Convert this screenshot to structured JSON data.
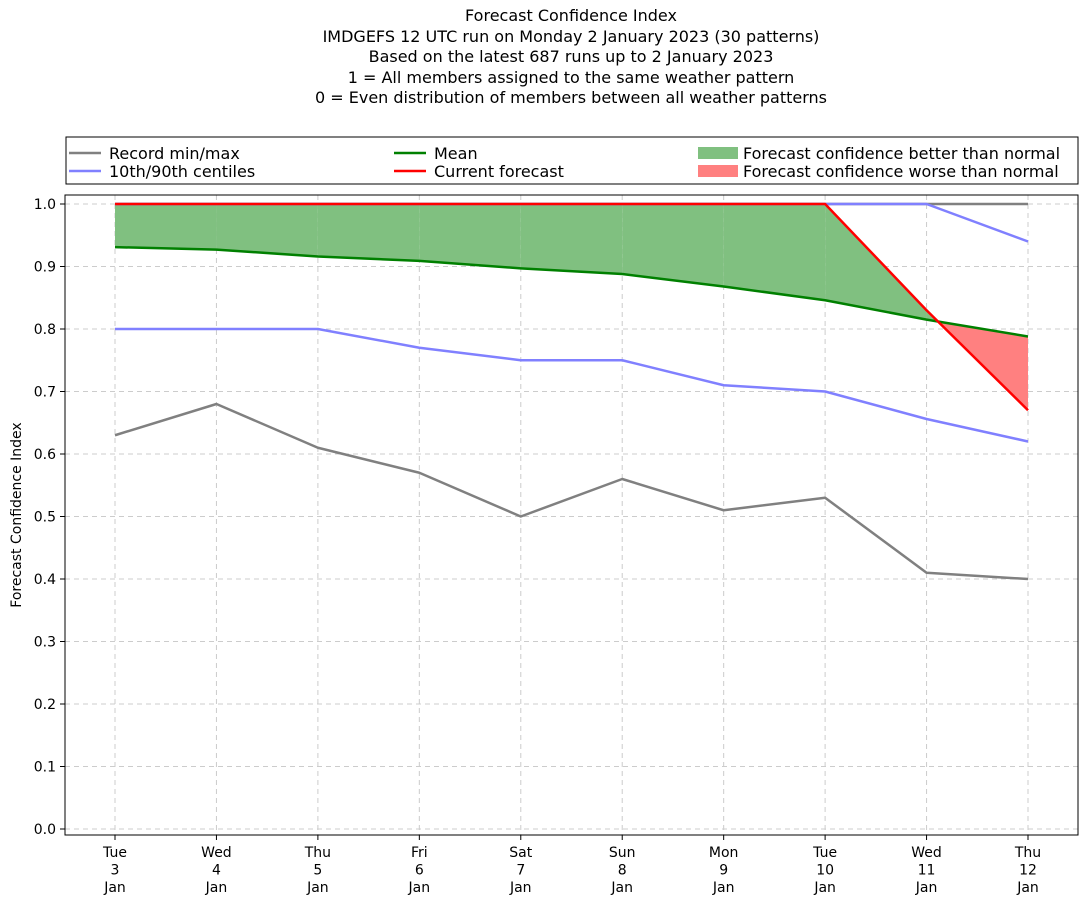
{
  "chart_data": {
    "type": "line",
    "title_lines": [
      "Forecast Confidence Index",
      "IMDGEFS 12 UTC run on Monday 2 January 2023 (30 patterns)",
      "Based on the latest 687 runs up to 2 January 2023",
      "1 = All members assigned to the same weather pattern",
      "0 = Even distribution of members between all weather patterns"
    ],
    "ylabel": "Forecast Confidence Index",
    "xlabel": "",
    "ylim": [
      0.0,
      1.0
    ],
    "yticks": [
      "0.0",
      "0.1",
      "0.2",
      "0.3",
      "0.4",
      "0.5",
      "0.6",
      "0.7",
      "0.8",
      "0.9",
      "1.0"
    ],
    "categories": [
      [
        "Tue",
        "3",
        "Jan"
      ],
      [
        "Wed",
        "4",
        "Jan"
      ],
      [
        "Thu",
        "5",
        "Jan"
      ],
      [
        "Fri",
        "6",
        "Jan"
      ],
      [
        "Sat",
        "7",
        "Jan"
      ],
      [
        "Sun",
        "8",
        "Jan"
      ],
      [
        "Mon",
        "9",
        "Jan"
      ],
      [
        "Tue",
        "10",
        "Jan"
      ],
      [
        "Wed",
        "11",
        "Jan"
      ],
      [
        "Thu",
        "12",
        "Jan"
      ]
    ],
    "grid": true,
    "legend_position": "top",
    "series": [
      {
        "key": "record_min",
        "name": "Record min/max",
        "color": "#808080",
        "values": [
          0.63,
          0.68,
          0.61,
          0.57,
          0.5,
          0.56,
          0.51,
          0.53,
          0.41,
          0.4
        ]
      },
      {
        "key": "record_max",
        "name": "Record min/max",
        "color": "#808080",
        "values": [
          1.0,
          1.0,
          1.0,
          1.0,
          1.0,
          1.0,
          1.0,
          1.0,
          1.0,
          1.0
        ]
      },
      {
        "key": "p10",
        "name": "10th/90th centiles",
        "color": "#8080ff",
        "values": [
          0.8,
          0.8,
          0.8,
          0.77,
          0.75,
          0.75,
          0.71,
          0.7,
          0.656,
          0.62
        ]
      },
      {
        "key": "p90",
        "name": "10th/90th centiles",
        "color": "#8080ff",
        "values": [
          1.0,
          1.0,
          1.0,
          1.0,
          1.0,
          1.0,
          1.0,
          1.0,
          1.0,
          0.94
        ]
      },
      {
        "key": "mean",
        "name": "Mean",
        "color": "#008000",
        "values": [
          0.931,
          0.927,
          0.916,
          0.909,
          0.897,
          0.888,
          0.868,
          0.846,
          0.815,
          0.788
        ]
      },
      {
        "key": "current",
        "name": "Current forecast",
        "color": "#ff0000",
        "values": [
          1.0,
          1.0,
          1.0,
          1.0,
          1.0,
          1.0,
          1.0,
          1.0,
          0.83,
          0.67
        ]
      }
    ],
    "legend": [
      {
        "label": "Record min/max",
        "kind": "line",
        "color": "#808080"
      },
      {
        "label": "10th/90th centiles",
        "kind": "line",
        "color": "#8080ff"
      },
      {
        "label": "Mean",
        "kind": "line",
        "color": "#008000"
      },
      {
        "label": "Current forecast",
        "kind": "line",
        "color": "#ff0000"
      },
      {
        "label": "Forecast confidence better than normal",
        "kind": "patch",
        "color": "#80c080"
      },
      {
        "label": "Forecast confidence worse than normal",
        "kind": "patch",
        "color": "#ff8080"
      }
    ],
    "fill_colors": {
      "better": "#80c080",
      "worse": "#ff8080"
    }
  }
}
